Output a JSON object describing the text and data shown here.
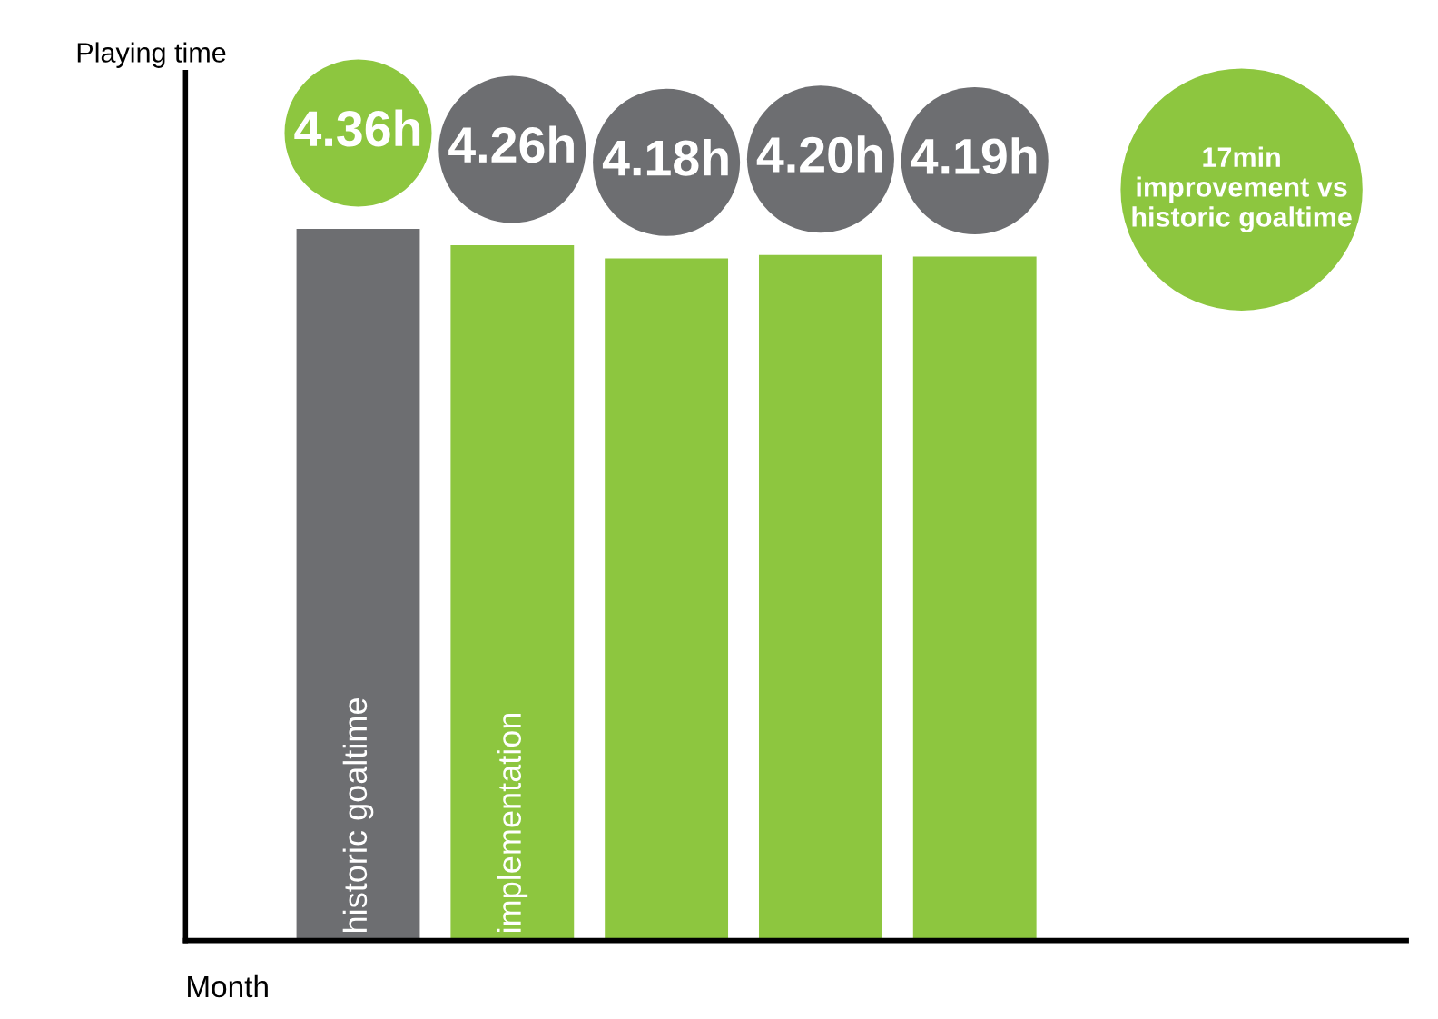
{
  "chart_data": {
    "type": "bar",
    "categories": [
      null,
      null,
      null,
      null,
      null
    ],
    "values": [
      4.36,
      4.26,
      4.18,
      4.2,
      4.19
    ],
    "value_labels": [
      "4.36h",
      "4.26h",
      "4.18h",
      "4.20h",
      "4.19h"
    ],
    "colors": [
      "#6d6e71",
      "#8dc63f",
      "#8dc63f",
      "#8dc63f",
      "#8dc63f"
    ],
    "tick_labels": false,
    "grid": false,
    "xlabel": "Month",
    "annotations": [
      "Playing time",
      "historic goaltime",
      "implementation",
      "17min\nimprovement vs\nhistoric goaltime"
    ]
  }
}
